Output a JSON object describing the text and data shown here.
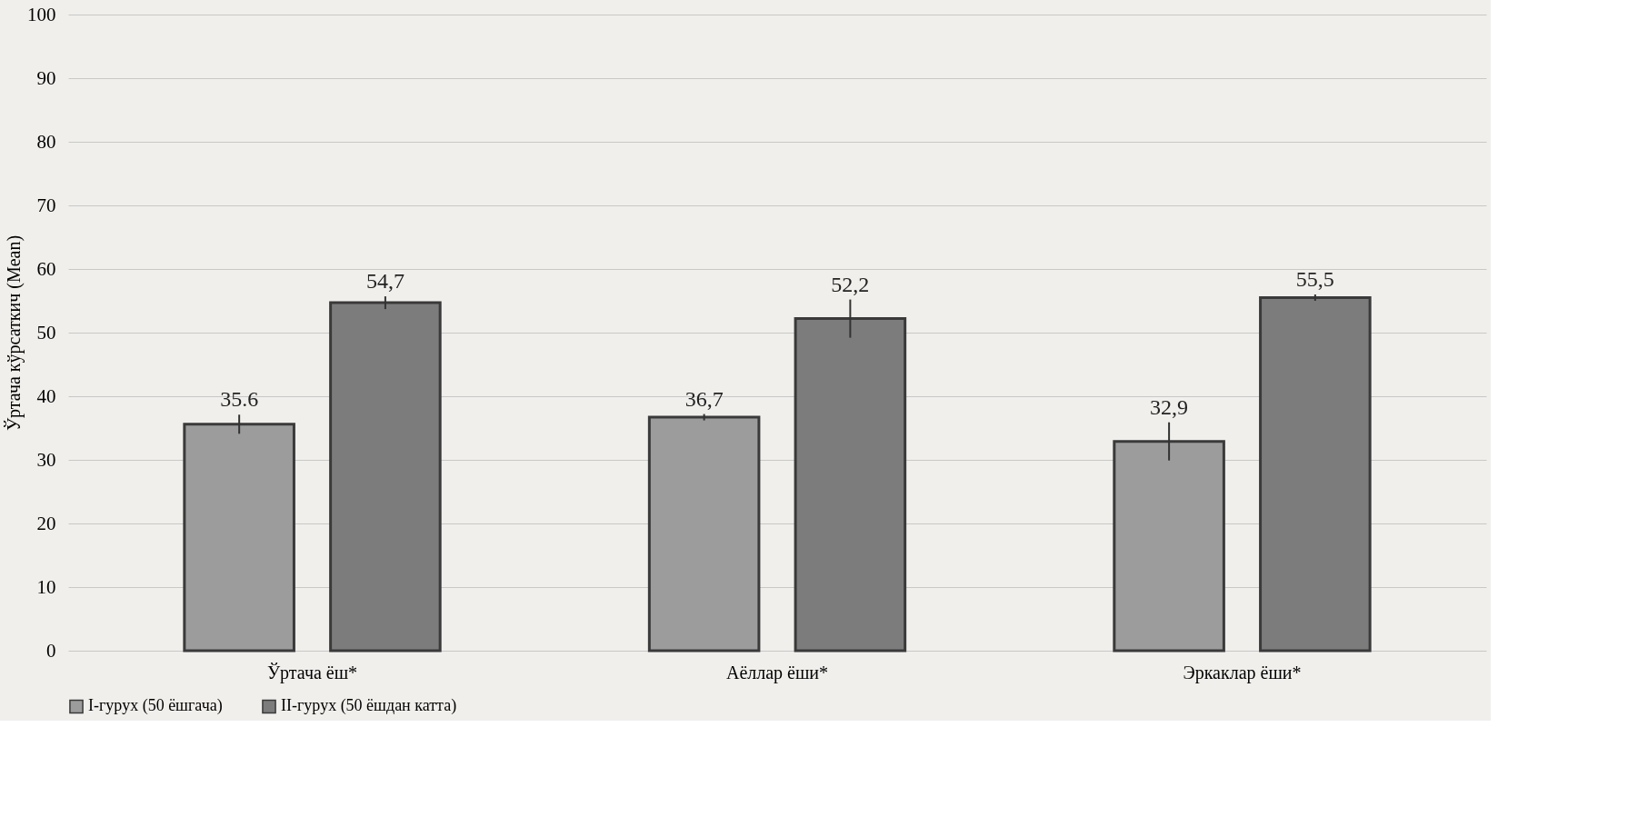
{
  "chart_data": {
    "type": "bar",
    "ylabel": "Ўртача кўрсаткич (Mean)",
    "categories": [
      "Ўртача ёш*",
      "Аёллар ёши*",
      "Эркаклар ёши*"
    ],
    "series": [
      {
        "name": "I-гурух (50 ёшгача)",
        "color": "#9c9c9c",
        "values": [
          35.6,
          36.7,
          32.9
        ],
        "errors": [
          1.5,
          0.5,
          3
        ],
        "value_labels": [
          "35.6",
          "36,7",
          "32,9"
        ]
      },
      {
        "name": "II-гурух (50 ёшдан катта)",
        "color": "#7c7c7c",
        "values": [
          54.7,
          52.2,
          55.5
        ],
        "errors": [
          1,
          3,
          0.5
        ],
        "value_labels": [
          "54,7",
          "52,2",
          "55,5"
        ]
      }
    ],
    "ylim": [
      0,
      100
    ],
    "yticks": [
      0,
      10,
      20,
      30,
      40,
      50,
      60,
      70,
      80,
      90,
      100
    ],
    "grid": "y",
    "legend": "bottom"
  }
}
